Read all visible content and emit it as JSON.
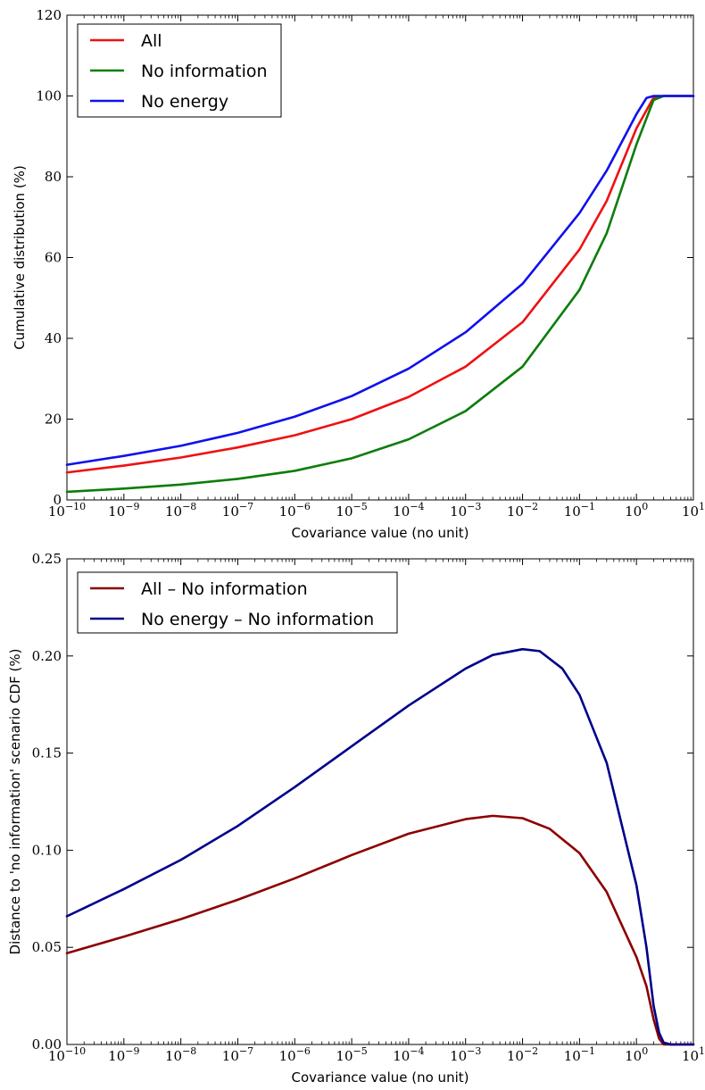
{
  "chart_data": [
    {
      "type": "line",
      "xlabel": "Covariance value (no unit)",
      "ylabel": "Cumulative distribution (%)",
      "xscale": "log",
      "xlim": [
        1e-10,
        10
      ],
      "ylim": [
        0,
        120
      ],
      "xticks": [
        -10,
        -9,
        -8,
        -7,
        -6,
        -5,
        -4,
        -3,
        -2,
        -1,
        0,
        1
      ],
      "yticks": [
        "0",
        "20",
        "40",
        "60",
        "80",
        "100",
        "120"
      ],
      "legend_location": "top-left",
      "series": [
        {
          "name": "All",
          "color": "#ee1111",
          "points": [
            [
              1e-10,
              6.8
            ],
            [
              1e-09,
              8.5
            ],
            [
              1e-08,
              10.5
            ],
            [
              1e-07,
              13.0
            ],
            [
              1e-06,
              16.0
            ],
            [
              1e-05,
              20.0
            ],
            [
              0.0001,
              25.5
            ],
            [
              0.001,
              33.0
            ],
            [
              0.01,
              44.0
            ],
            [
              0.1,
              62.0
            ],
            [
              0.3,
              74.0
            ],
            [
              1,
              92.0
            ],
            [
              2,
              99.6
            ],
            [
              3,
              100
            ],
            [
              10,
              100
            ]
          ]
        },
        {
          "name": "No information",
          "color": "#0b7d0b",
          "points": [
            [
              1e-10,
              2.0
            ],
            [
              1e-09,
              2.8
            ],
            [
              1e-08,
              3.8
            ],
            [
              1e-07,
              5.2
            ],
            [
              1e-06,
              7.2
            ],
            [
              1e-05,
              10.3
            ],
            [
              0.0001,
              15.0
            ],
            [
              0.001,
              22.0
            ],
            [
              0.01,
              33.0
            ],
            [
              0.1,
              52.0
            ],
            [
              0.3,
              66.0
            ],
            [
              1,
              88.0
            ],
            [
              2,
              99.0
            ],
            [
              3,
              100
            ],
            [
              10,
              100
            ]
          ]
        },
        {
          "name": "No energy",
          "color": "#1010ee",
          "points": [
            [
              1e-10,
              8.7
            ],
            [
              1e-09,
              10.9
            ],
            [
              1e-08,
              13.4
            ],
            [
              1e-07,
              16.6
            ],
            [
              1e-06,
              20.6
            ],
            [
              1e-05,
              25.7
            ],
            [
              0.0001,
              32.5
            ],
            [
              0.001,
              41.5
            ],
            [
              0.01,
              53.5
            ],
            [
              0.1,
              71.0
            ],
            [
              0.3,
              81.5
            ],
            [
              1,
              95.5
            ],
            [
              1.5,
              99.5
            ],
            [
              2,
              100
            ],
            [
              10,
              100
            ]
          ]
        }
      ]
    },
    {
      "type": "line",
      "xlabel": "Covariance value (no unit)",
      "ylabel": "Distance to 'no information' scenario CDF (%)",
      "xscale": "log",
      "xlim": [
        1e-10,
        10
      ],
      "ylim": [
        0,
        0.25
      ],
      "xticks": [
        -10,
        -9,
        -8,
        -7,
        -6,
        -5,
        -4,
        -3,
        -2,
        -1,
        0,
        1
      ],
      "yticks": [
        "0.00",
        "0.05",
        "0.10",
        "0.15",
        "0.20",
        "0.25"
      ],
      "legend_location": "top-left",
      "series": [
        {
          "name": "All – No information",
          "color": "#8b0000",
          "points": [
            [
              1e-10,
              0.047
            ],
            [
              1e-09,
              0.0555
            ],
            [
              1e-08,
              0.0645
            ],
            [
              1e-07,
              0.0745
            ],
            [
              1e-06,
              0.0855
            ],
            [
              1e-05,
              0.0975
            ],
            [
              0.0001,
              0.1085
            ],
            [
              0.001,
              0.116
            ],
            [
              0.003,
              0.1177
            ],
            [
              0.01,
              0.1165
            ],
            [
              0.03,
              0.111
            ],
            [
              0.1,
              0.0985
            ],
            [
              0.3,
              0.0785
            ],
            [
              1,
              0.045
            ],
            [
              1.5,
              0.03
            ],
            [
              2,
              0.013
            ],
            [
              2.5,
              0.003
            ],
            [
              3,
              0.0
            ],
            [
              10,
              0.0
            ]
          ]
        },
        {
          "name": "No energy – No information",
          "color": "#00008b",
          "points": [
            [
              1e-10,
              0.066
            ],
            [
              1e-09,
              0.08
            ],
            [
              1e-08,
              0.095
            ],
            [
              1e-07,
              0.1125
            ],
            [
              1e-06,
              0.1325
            ],
            [
              1e-05,
              0.1535
            ],
            [
              0.0001,
              0.1745
            ],
            [
              0.001,
              0.1935
            ],
            [
              0.003,
              0.2005
            ],
            [
              0.01,
              0.2035
            ],
            [
              0.02,
              0.2025
            ],
            [
              0.05,
              0.1935
            ],
            [
              0.1,
              0.18
            ],
            [
              0.3,
              0.145
            ],
            [
              1,
              0.082
            ],
            [
              1.5,
              0.05
            ],
            [
              2,
              0.02
            ],
            [
              2.5,
              0.006
            ],
            [
              3,
              0.001
            ],
            [
              4,
              0.0
            ],
            [
              10,
              0.0
            ]
          ]
        }
      ]
    }
  ]
}
